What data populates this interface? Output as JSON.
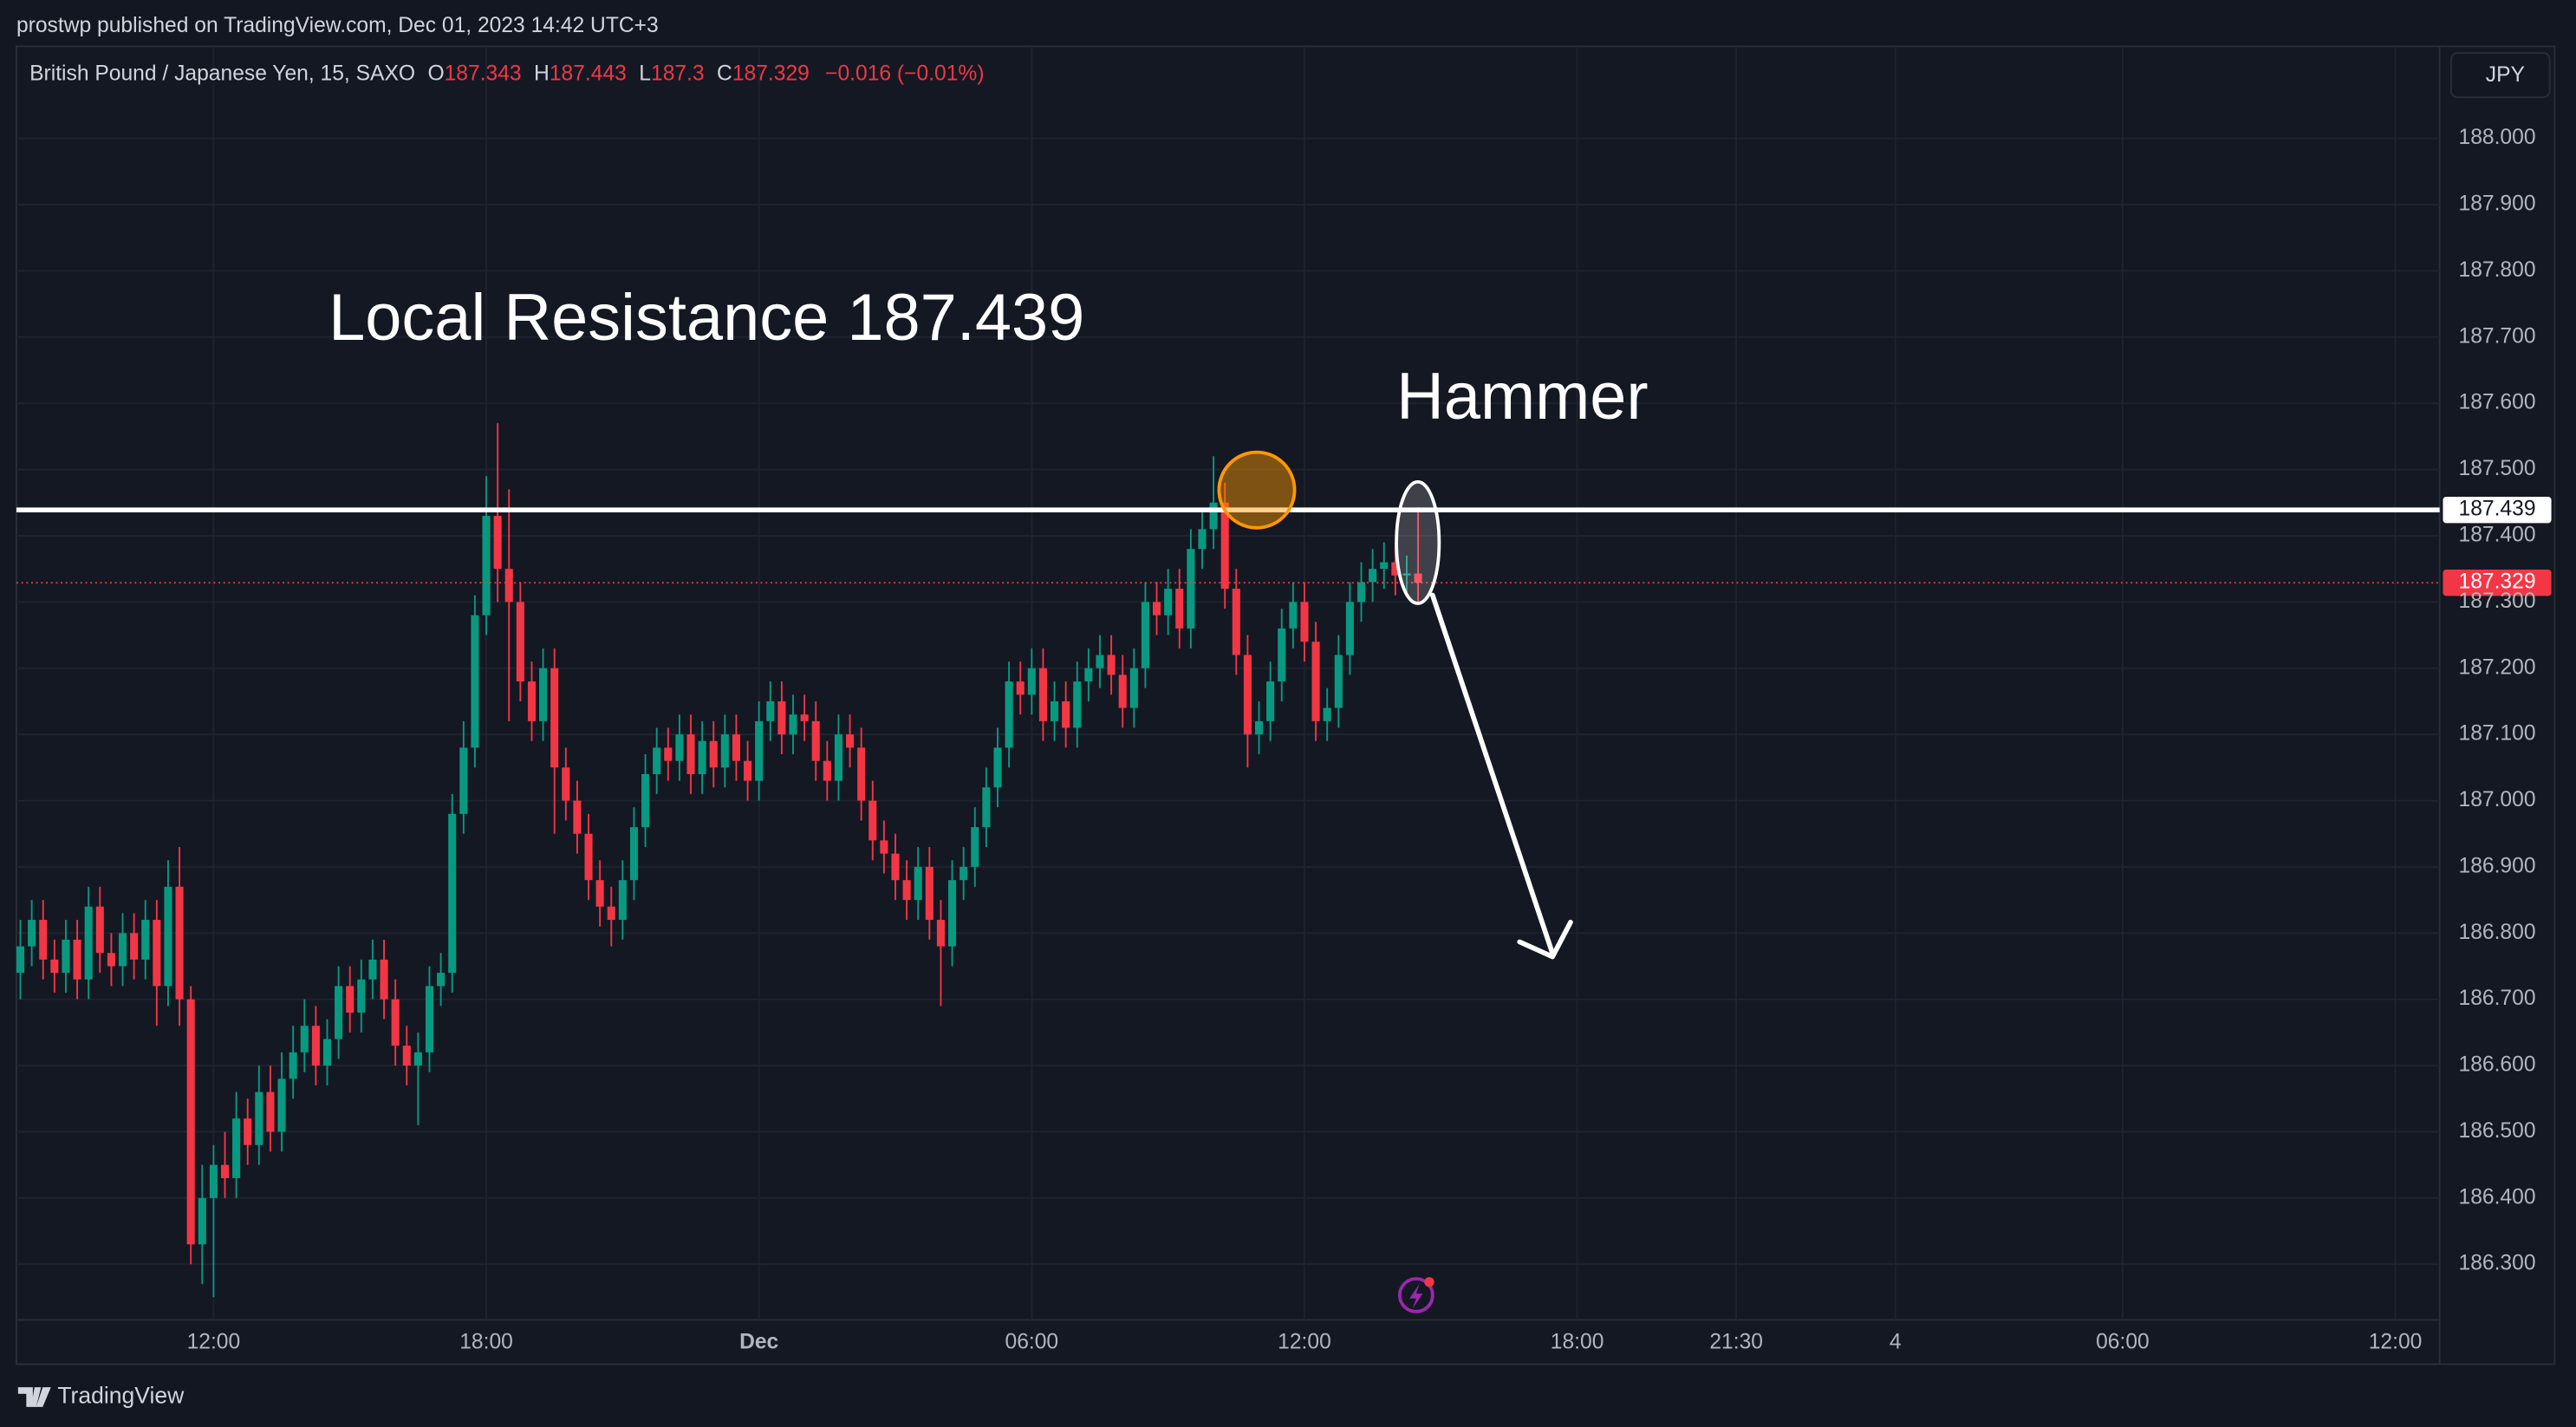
{
  "header": {
    "publisher": "prostwp published on TradingView.com, Dec 01, 2023 14:42 UTC+3",
    "currency": "JPY",
    "brand": "TradingView"
  },
  "chart_data": {
    "type": "candlestick",
    "legend": {
      "symbol": "British Pound / Japanese Yen, 15, SAXO",
      "ohlc": [
        {
          "label": "O",
          "value": 187.343
        },
        {
          "label": "H",
          "value": 187.443
        },
        {
          "label": "L",
          "value": 187.3
        },
        {
          "label": "C",
          "value": 187.329
        }
      ],
      "change": "−0.016 (−0.01%)"
    },
    "annotations": {
      "resistance_text": "Local Resistance 187.439",
      "hammer_text": "Hammer"
    },
    "resistance": {
      "value": 187.439,
      "label": "187.439"
    },
    "last_price": {
      "value": 187.329,
      "label": "187.329"
    },
    "up_color": "#089981",
    "down_color": "#f23645",
    "xlim": [
      7.663,
      60.975
    ],
    "ylim": [
      186.149,
      188.139
    ],
    "grid": true,
    "xticks": [
      {
        "value": 12,
        "label": "12:00"
      },
      {
        "value": 18,
        "label": "18:00"
      },
      {
        "value": 24,
        "label": "Dec"
      },
      {
        "value": 30,
        "label": "06:00"
      },
      {
        "value": 36,
        "label": "12:00"
      },
      {
        "value": 42,
        "label": "18:00"
      },
      {
        "value": 45.5,
        "label": "21:30"
      },
      {
        "value": 49,
        "label": "4"
      },
      {
        "value": 54,
        "label": "06:00"
      },
      {
        "value": 60,
        "label": "12:00"
      }
    ],
    "yticks": [
      {
        "value": 186.3,
        "label": "186.300"
      },
      {
        "value": 186.4,
        "label": "186.400"
      },
      {
        "value": 186.5,
        "label": "186.500"
      },
      {
        "value": 186.6,
        "label": "186.600"
      },
      {
        "value": 186.7,
        "label": "186.700"
      },
      {
        "value": 186.8,
        "label": "186.800"
      },
      {
        "value": 186.9,
        "label": "186.900"
      },
      {
        "value": 187.0,
        "label": "187.000"
      },
      {
        "value": 187.1,
        "label": "187.100"
      },
      {
        "value": 187.2,
        "label": "187.200"
      },
      {
        "value": 187.3,
        "label": "187.300"
      },
      {
        "value": 187.4,
        "label": "187.400"
      },
      {
        "value": 187.5,
        "label": "187.500"
      },
      {
        "value": 187.6,
        "label": "187.600"
      },
      {
        "value": 187.7,
        "label": "187.700"
      },
      {
        "value": 187.8,
        "label": "187.800"
      },
      {
        "value": 187.9,
        "label": "187.900"
      },
      {
        "value": 188.0,
        "label": "188.000"
      }
    ],
    "x": [
      7.75,
      8,
      8.25,
      8.5,
      8.75,
      9,
      9.25,
      9.5,
      9.75,
      10,
      10.25,
      10.5,
      10.75,
      11,
      11.25,
      11.5,
      11.75,
      12,
      12.25,
      12.5,
      12.75,
      13,
      13.25,
      13.5,
      13.75,
      14,
      14.25,
      14.5,
      14.75,
      15,
      15.25,
      15.5,
      15.75,
      16,
      16.25,
      16.5,
      16.75,
      17,
      17.25,
      17.5,
      17.75,
      18,
      18.25,
      18.5,
      18.75,
      19,
      19.25,
      19.5,
      19.75,
      20,
      20.25,
      20.5,
      20.75,
      21,
      21.25,
      21.5,
      21.75,
      22,
      22.25,
      22.5,
      22.75,
      23,
      23.25,
      23.5,
      23.75,
      24,
      24.25,
      24.5,
      24.75,
      25,
      25.25,
      25.5,
      25.75,
      26,
      26.25,
      26.5,
      26.75,
      27,
      27.25,
      27.5,
      27.75,
      28,
      28.25,
      28.5,
      28.75,
      29,
      29.25,
      29.5,
      29.75,
      30,
      30.25,
      30.5,
      30.75,
      31,
      31.25,
      31.5,
      31.75,
      32,
      32.25,
      32.5,
      32.75,
      33,
      33.25,
      33.5,
      33.75,
      34,
      34.25,
      34.5,
      34.75,
      35,
      35.25,
      35.5,
      35.75,
      36,
      36.25,
      36.5,
      36.75,
      37,
      37.25,
      37.5,
      37.75,
      38,
      38.25,
      38.5
    ],
    "open": [
      186.74,
      186.78,
      186.82,
      186.76,
      186.74,
      186.79,
      186.73,
      186.84,
      186.77,
      186.75,
      186.8,
      186.76,
      186.82,
      186.72,
      186.87,
      186.7,
      186.33,
      186.4,
      186.45,
      186.43,
      186.52,
      186.48,
      186.56,
      186.5,
      186.58,
      186.62,
      186.66,
      186.6,
      186.64,
      186.72,
      186.68,
      186.73,
      186.76,
      186.7,
      186.63,
      186.6,
      186.62,
      186.72,
      186.74,
      186.98,
      187.08,
      187.28,
      187.43,
      187.35,
      187.3,
      187.18,
      187.12,
      187.2,
      187.05,
      187.0,
      186.95,
      186.88,
      186.84,
      186.82,
      186.88,
      186.96,
      187.04,
      187.08,
      187.06,
      187.1,
      187.04,
      187.09,
      187.05,
      187.1,
      187.06,
      187.03,
      187.12,
      187.15,
      187.1,
      187.13,
      187.12,
      187.06,
      187.03,
      187.1,
      187.08,
      187.0,
      186.94,
      186.92,
      186.88,
      186.85,
      186.9,
      186.82,
      186.78,
      186.88,
      186.9,
      186.96,
      187.02,
      187.08,
      187.18,
      187.16,
      187.2,
      187.12,
      187.15,
      187.11,
      187.18,
      187.2,
      187.22,
      187.19,
      187.14,
      187.2,
      187.3,
      187.28,
      187.32,
      187.26,
      187.38,
      187.41,
      187.45,
      187.32,
      187.22,
      187.1,
      187.12,
      187.18,
      187.26,
      187.3,
      187.24,
      187.12,
      187.14,
      187.22,
      187.3,
      187.33,
      187.35,
      187.36,
      187.34,
      187.343
    ],
    "high": [
      186.82,
      186.85,
      186.85,
      186.79,
      186.82,
      186.82,
      186.87,
      186.87,
      186.8,
      186.83,
      186.83,
      186.85,
      186.85,
      186.91,
      186.93,
      186.72,
      186.45,
      186.48,
      186.5,
      186.56,
      186.55,
      186.6,
      186.6,
      186.62,
      186.66,
      186.7,
      186.69,
      186.67,
      186.75,
      186.75,
      186.76,
      186.79,
      186.79,
      186.73,
      186.66,
      186.65,
      186.75,
      186.77,
      187.01,
      187.12,
      187.31,
      187.49,
      187.57,
      187.47,
      187.33,
      187.21,
      187.23,
      187.23,
      187.08,
      187.03,
      186.98,
      186.91,
      186.87,
      186.91,
      186.99,
      187.07,
      187.11,
      187.11,
      187.13,
      187.13,
      187.12,
      187.12,
      187.13,
      187.13,
      187.09,
      187.15,
      187.18,
      187.18,
      187.16,
      187.16,
      187.15,
      187.09,
      187.13,
      187.13,
      187.11,
      187.03,
      186.97,
      186.95,
      186.91,
      186.93,
      186.93,
      186.85,
      186.91,
      186.93,
      186.99,
      187.05,
      187.11,
      187.21,
      187.21,
      187.23,
      187.23,
      187.18,
      187.18,
      187.21,
      187.23,
      187.25,
      187.25,
      187.22,
      187.23,
      187.33,
      187.33,
      187.35,
      187.35,
      187.41,
      187.44,
      187.52,
      187.48,
      187.35,
      187.25,
      187.15,
      187.21,
      187.29,
      187.33,
      187.33,
      187.27,
      187.17,
      187.25,
      187.33,
      187.36,
      187.38,
      187.39,
      187.39,
      187.37,
      187.443
    ],
    "low": [
      186.7,
      186.75,
      186.73,
      186.71,
      186.71,
      186.7,
      186.7,
      186.74,
      186.72,
      186.72,
      186.73,
      186.73,
      186.66,
      186.69,
      186.66,
      186.3,
      186.27,
      186.25,
      186.4,
      186.4,
      186.45,
      186.45,
      186.47,
      186.47,
      186.55,
      186.59,
      186.57,
      186.57,
      186.61,
      186.65,
      186.65,
      186.7,
      186.67,
      186.6,
      186.57,
      186.51,
      186.59,
      186.69,
      186.71,
      186.95,
      187.05,
      187.25,
      187.3,
      187.12,
      187.15,
      187.09,
      187.09,
      186.95,
      186.97,
      186.92,
      186.85,
      186.81,
      186.78,
      186.79,
      186.85,
      186.93,
      187.01,
      187.03,
      187.03,
      187.01,
      187.01,
      187.02,
      187.02,
      187.03,
      187.0,
      187.0,
      187.09,
      187.07,
      187.07,
      187.09,
      187.03,
      187.0,
      187.0,
      187.05,
      186.97,
      186.91,
      186.89,
      186.85,
      186.82,
      186.82,
      186.79,
      186.69,
      186.75,
      186.85,
      186.87,
      186.93,
      186.99,
      187.05,
      187.13,
      187.13,
      187.09,
      187.09,
      187.08,
      187.08,
      187.15,
      187.17,
      187.16,
      187.11,
      187.11,
      187.17,
      187.25,
      187.25,
      187.23,
      187.23,
      187.35,
      187.38,
      187.29,
      187.19,
      187.05,
      187.07,
      187.09,
      187.15,
      187.23,
      187.21,
      187.09,
      187.09,
      187.11,
      187.19,
      187.27,
      187.3,
      187.32,
      187.31,
      187.31,
      187.3
    ],
    "close": [
      186.78,
      186.82,
      186.76,
      186.74,
      186.79,
      186.73,
      186.84,
      186.77,
      186.75,
      186.8,
      186.76,
      186.82,
      186.72,
      186.87,
      186.7,
      186.33,
      186.4,
      186.45,
      186.43,
      186.52,
      186.48,
      186.56,
      186.5,
      186.58,
      186.62,
      186.66,
      186.6,
      186.64,
      186.72,
      186.68,
      186.73,
      186.76,
      186.7,
      186.63,
      186.6,
      186.62,
      186.72,
      186.74,
      186.98,
      187.08,
      187.28,
      187.43,
      187.35,
      187.3,
      187.18,
      187.12,
      187.2,
      187.05,
      187.0,
      186.95,
      186.88,
      186.84,
      186.82,
      186.88,
      186.96,
      187.04,
      187.08,
      187.06,
      187.1,
      187.04,
      187.09,
      187.05,
      187.1,
      187.06,
      187.03,
      187.12,
      187.15,
      187.1,
      187.13,
      187.12,
      187.06,
      187.03,
      187.1,
      187.08,
      187.0,
      186.94,
      186.92,
      186.88,
      186.85,
      186.9,
      186.82,
      186.78,
      186.88,
      186.9,
      186.96,
      187.02,
      187.08,
      187.18,
      187.16,
      187.2,
      187.12,
      187.15,
      187.11,
      187.18,
      187.2,
      187.22,
      187.19,
      187.14,
      187.2,
      187.3,
      187.28,
      187.32,
      187.26,
      187.38,
      187.41,
      187.45,
      187.32,
      187.22,
      187.1,
      187.12,
      187.18,
      187.26,
      187.3,
      187.24,
      187.12,
      187.14,
      187.22,
      187.3,
      187.33,
      187.35,
      187.36,
      187.34,
      187.343,
      187.329
    ]
  }
}
